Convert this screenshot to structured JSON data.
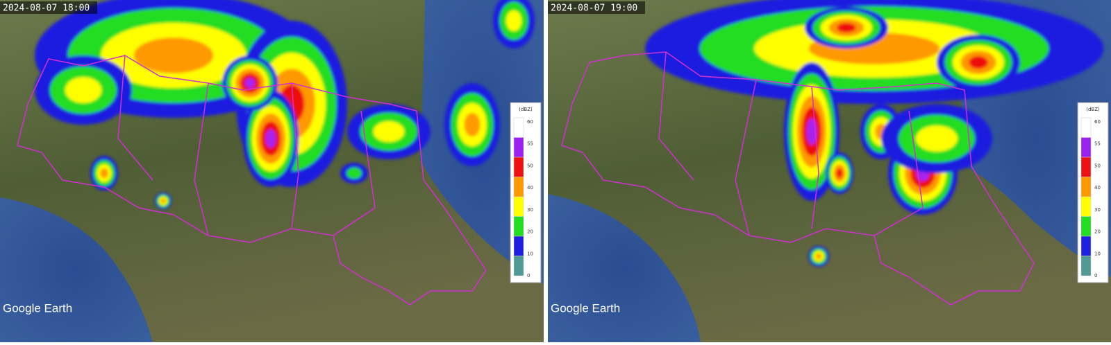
{
  "panels": [
    {
      "timestamp": "2024-08-07 18:00",
      "watermark": "Google Earth",
      "legend": {
        "unit": "(dBZ)",
        "labels": [
          "60",
          "55",
          "50",
          "40",
          "30",
          "20",
          "10",
          "0"
        ]
      }
    },
    {
      "timestamp": "2024-08-07 19:00",
      "watermark": "Google Earth",
      "legend": {
        "unit": "(dBZ)",
        "labels": [
          "60",
          "55",
          "50",
          "40",
          "30",
          "20",
          "10",
          "0"
        ]
      }
    }
  ]
}
